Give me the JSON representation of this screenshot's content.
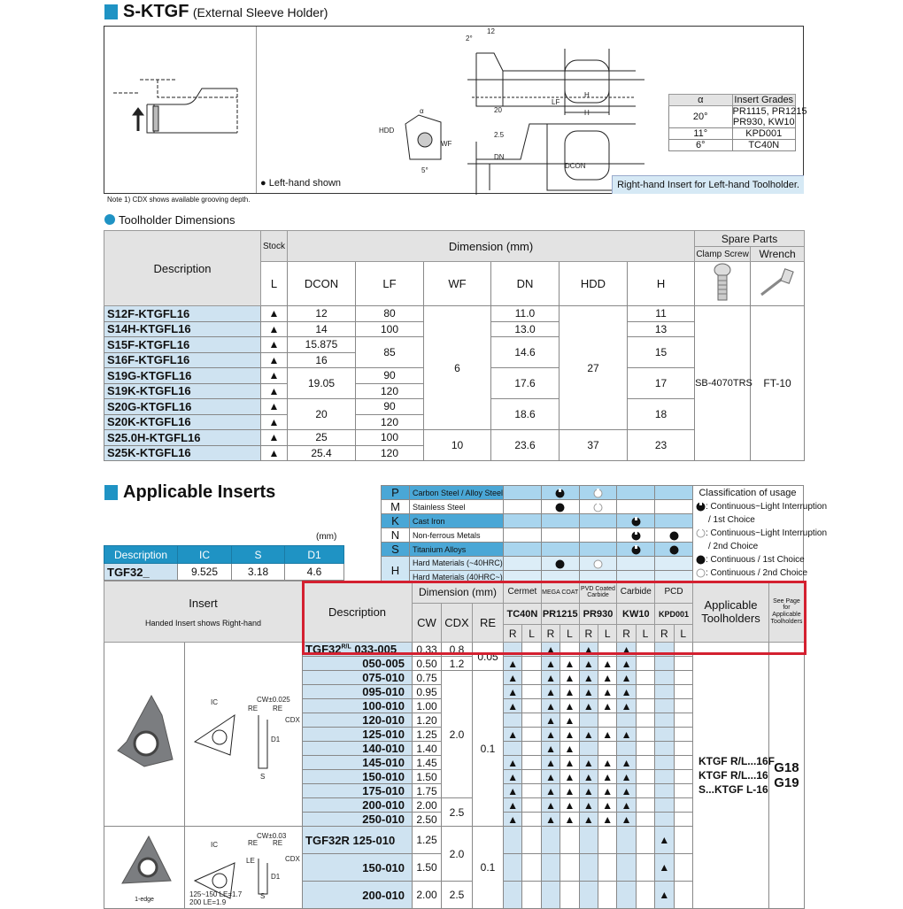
{
  "header": {
    "title": "S-KTGF",
    "subtitle": "(External Sleeve Holder)"
  },
  "diagram": {
    "left_hand_note": "Left-hand shown",
    "right_hand_note": "Right-hand Insert for Left-hand Toolholder.",
    "labels": {
      "d12": "12",
      "deg2": "2°",
      "lf": "LF",
      "d20": "20",
      "h": "H",
      "d25": "2.5",
      "note1": "Note 1",
      "wf": "WF",
      "dn": "DN",
      "dcon": "DCON",
      "hdd": "HDD",
      "alpha": "α",
      "deg5": "5°"
    }
  },
  "grades_table": {
    "headers": [
      "α",
      "Insert Grades"
    ],
    "rows": [
      [
        "20°",
        "PR1115, PR1215",
        "PR930, KW10"
      ],
      [
        "11°",
        "KPD001"
      ],
      [
        "6°",
        "TC40N"
      ]
    ]
  },
  "note": "Note 1) CDX shows available grooving depth.",
  "toolholder": {
    "section_title": "Toolholder Dimensions",
    "headers": {
      "description": "Description",
      "stock": "Stock",
      "dimension": "Dimension (mm)",
      "spare": "Spare Parts",
      "clamp": "Clamp Screw",
      "wrench": "Wrench",
      "cols": [
        "L",
        "DCON",
        "LF",
        "WF",
        "DN",
        "HDD",
        "H"
      ]
    },
    "rows": [
      {
        "desc": "S12F-KTGFL16",
        "stock": "▲"
      },
      {
        "desc": "S14H-KTGFL16",
        "stock": "▲"
      },
      {
        "desc": "S15F-KTGFL16",
        "stock": "▲"
      },
      {
        "desc": "S16F-KTGFL16",
        "stock": "▲"
      },
      {
        "desc": "S19G-KTGFL16",
        "stock": "▲"
      },
      {
        "desc": "S19K-KTGFL16",
        "stock": "▲"
      },
      {
        "desc": "S20G-KTGFL16",
        "stock": "▲"
      },
      {
        "desc": "S20K-KTGFL16",
        "stock": "▲"
      },
      {
        "desc": "S25.0H-KTGFL16",
        "stock": "▲"
      },
      {
        "desc": "S25K-KTGFL16",
        "stock": "▲"
      }
    ],
    "dcon": [
      {
        "v": "12",
        "n": 1
      },
      {
        "v": "14",
        "n": 1
      },
      {
        "v": "15.875",
        "n": 1
      },
      {
        "v": "16",
        "n": 1
      },
      {
        "v": "19.05",
        "n": 2
      },
      {
        "v": "20",
        "n": 2
      },
      {
        "v": "25",
        "n": 1
      },
      {
        "v": "25.4",
        "n": 1
      }
    ],
    "lf": [
      {
        "v": "80",
        "n": 1
      },
      {
        "v": "100",
        "n": 1
      },
      {
        "v": "85",
        "n": 2
      },
      {
        "v": "90",
        "n": 1
      },
      {
        "v": "120",
        "n": 1
      },
      {
        "v": "90",
        "n": 1
      },
      {
        "v": "120",
        "n": 1
      },
      {
        "v": "100",
        "n": 1
      },
      {
        "v": "120",
        "n": 1
      }
    ],
    "wf": [
      {
        "v": "6",
        "n": 8
      },
      {
        "v": "10",
        "n": 2
      }
    ],
    "dn": [
      {
        "v": "11.0",
        "n": 1
      },
      {
        "v": "13.0",
        "n": 1
      },
      {
        "v": "14.6",
        "n": 2
      },
      {
        "v": "17.6",
        "n": 2
      },
      {
        "v": "18.6",
        "n": 2
      },
      {
        "v": "23.6",
        "n": 2
      }
    ],
    "hdd": [
      {
        "v": "27",
        "n": 8
      },
      {
        "v": "37",
        "n": 2
      }
    ],
    "h": [
      {
        "v": "11",
        "n": 1
      },
      {
        "v": "13",
        "n": 1
      },
      {
        "v": "15",
        "n": 2
      },
      {
        "v": "17",
        "n": 2
      },
      {
        "v": "18",
        "n": 2
      },
      {
        "v": "23",
        "n": 2
      }
    ],
    "clamp": "SB-4070TRS",
    "wrench": "FT-10"
  },
  "inserts": {
    "section_title": "Applicable Inserts",
    "unit": "(mm)",
    "size_table": {
      "headers": [
        "Description",
        "IC",
        "S",
        "D1"
      ],
      "row": [
        "TGF32_",
        "9.525",
        "3.18",
        "4.6"
      ]
    },
    "materials": [
      {
        "letter": "P",
        "name": "Carbon Steel / Alloy Steel",
        "marks": {
          "PR1215": "notch-filled",
          "PR930": "notch-hollow"
        }
      },
      {
        "letter": "M",
        "name": "Stainless Steel",
        "marks": {
          "PR1215": "filled",
          "PR930": "notch-hollow"
        }
      },
      {
        "letter": "K",
        "name": "Cast Iron",
        "marks": {
          "KW10": "notch-filled"
        }
      },
      {
        "letter": "N",
        "name": "Non-ferrous Metals",
        "marks": {
          "KW10": "notch-filled",
          "KPD001": "filled"
        }
      },
      {
        "letter": "S",
        "name": "Titanium Alloys",
        "marks": {
          "KW10": "notch-filled",
          "KPD001": "filled"
        }
      },
      {
        "letter": "H",
        "name": "Hard Materials (~40HRC)",
        "marks": {
          "PR1215": "filled",
          "PR930": "hollow"
        }
      },
      {
        "letter": "",
        "name": "Hard Materials (40HRC~)",
        "marks": {}
      }
    ],
    "legend": {
      "title": "Classification of usage",
      "items": [
        {
          "icon": "notch-filled",
          "lines": [
            ": Continuous~Light Interruption",
            "/ 1st Choice"
          ]
        },
        {
          "icon": "notch-hollow",
          "lines": [
            ": Continuous~Light Interruption",
            "/ 2nd Choice"
          ]
        },
        {
          "icon": "filled",
          "lines": [
            ": Continuous / 1st Choice"
          ]
        },
        {
          "icon": "hollow",
          "lines": [
            ": Continuous / 2nd Choice"
          ]
        }
      ]
    },
    "headers": {
      "insert": "Insert",
      "insert_note": "Handed Insert shows Right-hand",
      "description": "Description",
      "dimension": "Dimension (mm)",
      "dims": [
        "CW",
        "CDX",
        "RE"
      ],
      "groups": [
        "Cermet",
        "MEGA COAT",
        "PVD Coated Carbide",
        "Carbide",
        "PCD"
      ],
      "grades": [
        "TC40N",
        "PR1215",
        "PR930",
        "KW10",
        "KPD001"
      ],
      "rl": [
        "R",
        "L"
      ],
      "applicable": "Applicable Toolholders",
      "see_page": "See Page for Applicable Toolholders"
    },
    "drawing_labels": {
      "ic": "IC",
      "cw1": "CW±0.025",
      "cw2": "CW±0.03",
      "re": "RE",
      "cdx": "CDX",
      "d1": "D1",
      "s": "S",
      "le": "LE",
      "le_note1": "125~150 LE=1.7",
      "le_note2": "200      LE=1.9",
      "one_edge": "1-edge"
    },
    "group1": {
      "prefix": "TGF32",
      "hand": "R/L",
      "rows": [
        {
          "code": "033-005",
          "cw": "0.33",
          "m": [
            "",
            "",
            "▲",
            "",
            "▲",
            "",
            "▲",
            "",
            "",
            ""
          ]
        },
        {
          "code": "050-005",
          "cw": "0.50",
          "m": [
            "▲",
            "",
            "▲",
            "▲",
            "▲",
            "▲",
            "▲",
            "",
            "",
            ""
          ]
        },
        {
          "code": "075-010",
          "cw": "0.75",
          "m": [
            "▲",
            "",
            "▲",
            "▲",
            "▲",
            "▲",
            "▲",
            "",
            "",
            ""
          ]
        },
        {
          "code": "095-010",
          "cw": "0.95",
          "m": [
            "▲",
            "",
            "▲",
            "▲",
            "▲",
            "▲",
            "▲",
            "",
            "",
            ""
          ]
        },
        {
          "code": "100-010",
          "cw": "1.00",
          "m": [
            "▲",
            "",
            "▲",
            "▲",
            "▲",
            "▲",
            "▲",
            "",
            "",
            ""
          ]
        },
        {
          "code": "120-010",
          "cw": "1.20",
          "m": [
            "",
            "",
            "▲",
            "▲",
            "",
            "",
            "",
            "",
            "",
            ""
          ]
        },
        {
          "code": "125-010",
          "cw": "1.25",
          "m": [
            "▲",
            "",
            "▲",
            "▲",
            "▲",
            "▲",
            "▲",
            "",
            "",
            ""
          ]
        },
        {
          "code": "140-010",
          "cw": "1.40",
          "m": [
            "",
            "",
            "▲",
            "▲",
            "",
            "",
            "",
            "",
            "",
            ""
          ]
        },
        {
          "code": "145-010",
          "cw": "1.45",
          "m": [
            "▲",
            "",
            "▲",
            "▲",
            "▲",
            "▲",
            "▲",
            "",
            "",
            ""
          ]
        },
        {
          "code": "150-010",
          "cw": "1.50",
          "m": [
            "▲",
            "",
            "▲",
            "▲",
            "▲",
            "▲",
            "▲",
            "",
            "",
            ""
          ]
        },
        {
          "code": "175-010",
          "cw": "1.75",
          "m": [
            "▲",
            "",
            "▲",
            "▲",
            "▲",
            "▲",
            "▲",
            "",
            "",
            ""
          ]
        },
        {
          "code": "200-010",
          "cw": "2.00",
          "m": [
            "▲",
            "",
            "▲",
            "▲",
            "▲",
            "▲",
            "▲",
            "",
            "",
            ""
          ]
        },
        {
          "code": "250-010",
          "cw": "2.50",
          "m": [
            "▲",
            "",
            "▲",
            "▲",
            "▲",
            "▲",
            "▲",
            "",
            "",
            ""
          ]
        }
      ],
      "cdx": [
        {
          "v": "0.8",
          "n": 1
        },
        {
          "v": "1.2",
          "n": 1
        },
        {
          "v": "2.0",
          "n": 9
        },
        {
          "v": "2.5",
          "n": 2
        }
      ],
      "re": [
        {
          "v": "0.05",
          "n": 2
        },
        {
          "v": "0.1",
          "n": 11
        }
      ]
    },
    "group2": {
      "prefix": "TGF32R",
      "rows": [
        {
          "code": "125-010",
          "cw": "1.25",
          "m": [
            "",
            "",
            "",
            "",
            "",
            "",
            "",
            "",
            "▲",
            ""
          ]
        },
        {
          "code": "150-010",
          "cw": "1.50",
          "m": [
            "",
            "",
            "",
            "",
            "",
            "",
            "",
            "",
            "▲",
            ""
          ]
        },
        {
          "code": "200-010",
          "cw": "2.00",
          "m": [
            "",
            "",
            "",
            "",
            "",
            "",
            "",
            "",
            "▲",
            ""
          ]
        }
      ],
      "cdx": [
        {
          "v": "2.0",
          "n": 2
        },
        {
          "v": "2.5",
          "n": 1
        }
      ],
      "re": [
        {
          "v": "0.1",
          "n": 3
        }
      ]
    },
    "toolholders": [
      "KTGF R/L...16F",
      "KTGF R/L...16",
      "S...KTGF L-16"
    ],
    "pages": [
      "G18",
      "G19"
    ]
  },
  "colors": {
    "accent": "#1f93c4",
    "desc_fill": "#cfe3f1",
    "highlight": "#d42030"
  }
}
